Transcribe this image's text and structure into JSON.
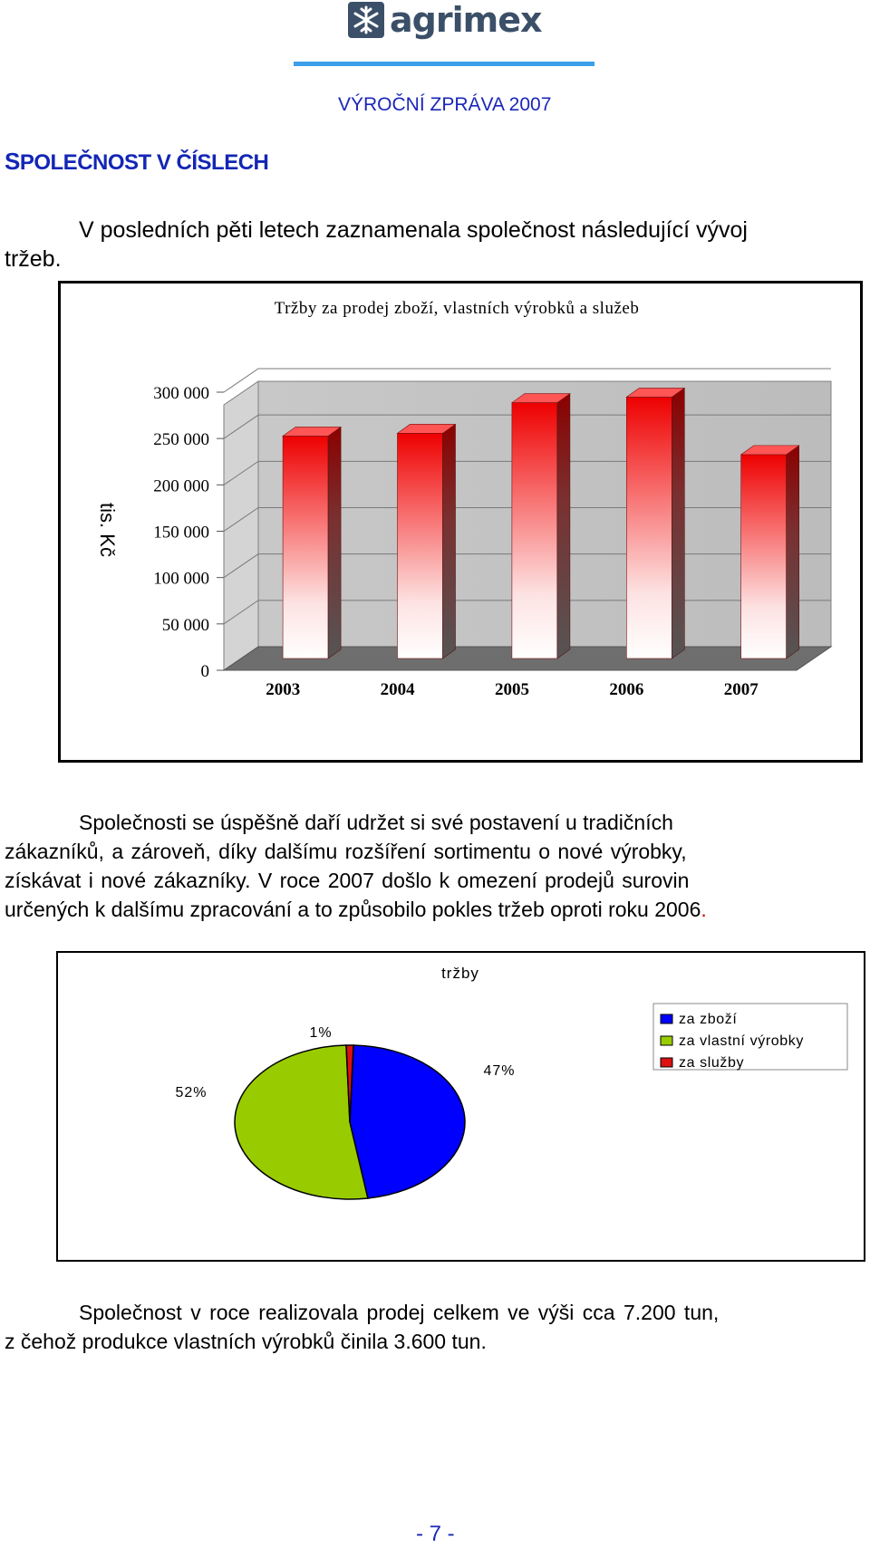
{
  "header": {
    "logo_text": "agrimex",
    "report_title": "VÝROČNÍ ZPRÁVA 2007"
  },
  "section_heading": {
    "first_letter": "S",
    "rest": "POLEČNOST V ČÍSLECH"
  },
  "intro": {
    "line1": "V posledních pěti letech zaznamenala společnost následující vývoj",
    "line2": "tržeb."
  },
  "paragraph2": {
    "lines": [
      "Společnosti se úspěšně daří udržet si své postavení u tradičních",
      "zákazníků, a zároveň, díky dalšímu rozšíření sortimentu o nové výrobky,",
      "získávat i nové zákazníky. V roce 2007 došlo k omezení prodejů surovin",
      "určených k dalšímu zpracování a to způsobilo pokles tržeb oproti roku 2006",
      "."
    ]
  },
  "paragraph3": {
    "lines": [
      "Společnost v roce   realizovala prodej celkem ve výši cca 7.200 tun,",
      "z čehož produkce vlastních výrobků činila 3.600 tun."
    ]
  },
  "page_number": "- 7 -",
  "colors": {
    "brand": "#3b5068",
    "accent_blue": "#1a27b8",
    "bar_top": "#ee0000",
    "pie_goods": "#0000ff",
    "pie_own_products": "#99cc00",
    "pie_services": "#dd1111"
  },
  "chart_data": [
    {
      "type": "bar",
      "title": "Tržby za prodej zboží, vlastních výrobků a služeb",
      "ylabel": "tis. Kč",
      "xlabel": "",
      "categories": [
        "2003",
        "2004",
        "2005",
        "2006",
        "2007"
      ],
      "values": [
        240000,
        243000,
        276000,
        282000,
        220000
      ],
      "ylim": [
        0,
        300000
      ],
      "yticks": [
        0,
        50000,
        100000,
        150000,
        200000,
        250000,
        300000
      ],
      "ytick_labels": [
        "0",
        "50 000",
        "100 000",
        "150 000",
        "200 000",
        "250 000",
        "300 000"
      ],
      "grid": true,
      "style": "3d-gradient"
    },
    {
      "type": "pie",
      "title": "tržby",
      "slices": [
        {
          "name": "za zboží",
          "value": 47,
          "label": "47%",
          "color": "#0000ff"
        },
        {
          "name": "za vlastní výrobky",
          "value": 52,
          "label": "52%",
          "color": "#99cc00"
        },
        {
          "name": "za služby",
          "value": 1,
          "label": "1%",
          "color": "#dd1111"
        }
      ],
      "legend": "right"
    }
  ]
}
